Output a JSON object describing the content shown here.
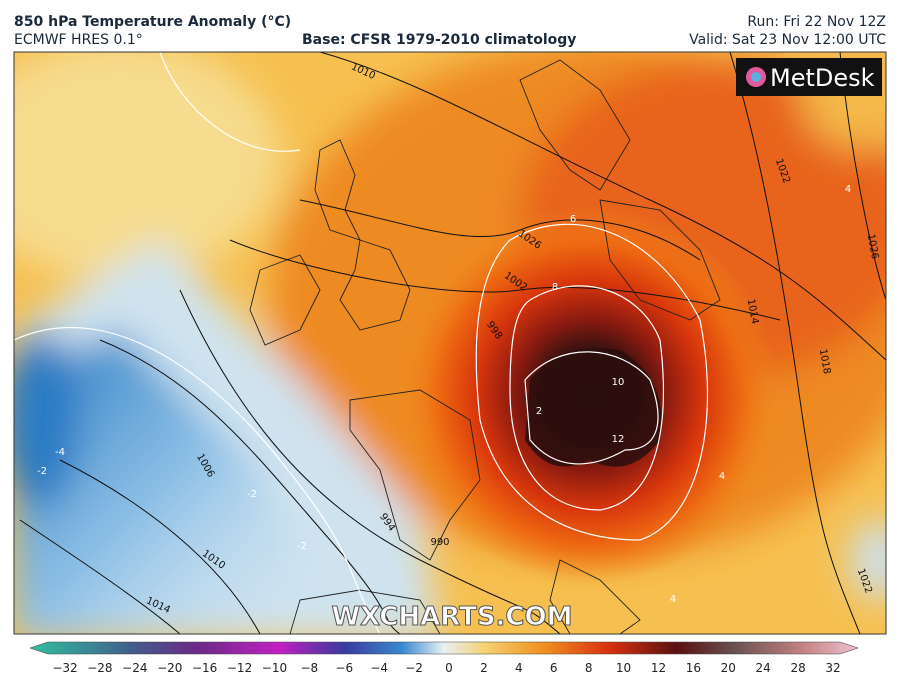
{
  "header": {
    "title": "850 hPa Temperature Anomaly (°C)",
    "model": "ECMWF HRES 0.1°",
    "base": "Base: CFSR 1979-2010 climatology",
    "run": "Run: Fri 22 Nov 12Z",
    "valid": "Valid: Sat 23 Nov 12:00 UTC"
  },
  "logo": "MetDesk",
  "watermark": "WXCHARTS.COM",
  "isobar_labels": [
    "1010",
    "1026",
    "1002",
    "998",
    "1006",
    "994",
    "990",
    "1010",
    "1014",
    "1014",
    "1018",
    "1022",
    "1026",
    "1022"
  ],
  "anomaly_labels": [
    "6",
    "8",
    "10",
    "12",
    "2",
    "-4",
    "-2",
    "-2",
    "-2",
    "4",
    "4",
    "4"
  ],
  "colorbar": {
    "ticks": [
      "−32",
      "−28",
      "−24",
      "−20",
      "−16",
      "−12",
      "−10",
      "−8",
      "−6",
      "−4",
      "−2",
      "0",
      "2",
      "4",
      "6",
      "8",
      "10",
      "12",
      "16",
      "20",
      "24",
      "28",
      "32"
    ]
  }
}
